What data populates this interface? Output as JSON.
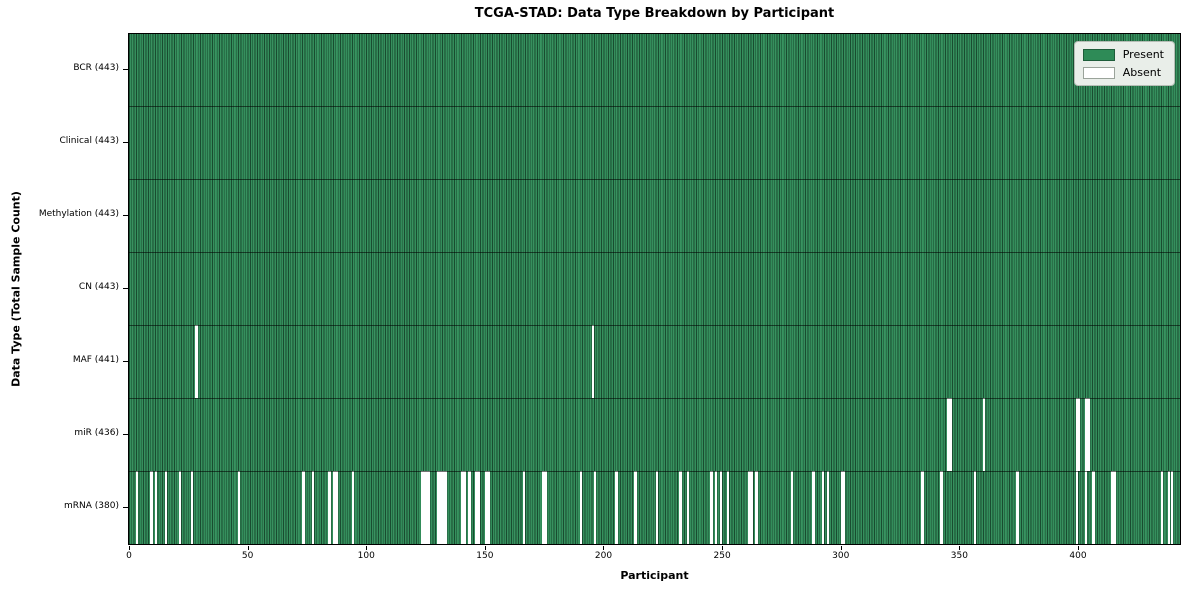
{
  "chart_data": {
    "type": "heatmap",
    "title": "TCGA-STAD: Data Type Breakdown by Participant",
    "xlabel": "Participant",
    "ylabel": "Data Type (Total Sample Count)",
    "xlim": [
      0,
      443
    ],
    "n_participants": 443,
    "x_ticks": [
      0,
      50,
      100,
      150,
      200,
      250,
      300,
      350,
      400
    ],
    "grid": "row-separators",
    "legend_position": "upper-right",
    "legend": [
      {
        "label": "Present",
        "color": "#2e8b57"
      },
      {
        "label": "Absent",
        "color": "#ffffff"
      }
    ],
    "colors": {
      "present": "#2e8b57",
      "bar_edge": "rgba(0,0,0,0.45)",
      "row_separator": "rgba(0,0,0,0.55)",
      "legend_bg": "#e9eee9"
    },
    "rows": [
      {
        "label": "BCR (443)",
        "total": 443,
        "absent": []
      },
      {
        "label": "Clinical (443)",
        "total": 443,
        "absent": []
      },
      {
        "label": "Methylation (443)",
        "total": 443,
        "absent": []
      },
      {
        "label": "CN (443)",
        "total": 443,
        "absent": []
      },
      {
        "label": "MAF (441)",
        "total": 441,
        "absent": [
          28,
          195
        ]
      },
      {
        "label": "miR (436)",
        "total": 436,
        "absent": [
          345,
          346,
          360,
          399,
          400,
          403,
          404
        ]
      },
      {
        "label": "mRNA (380)",
        "total": 380,
        "absent": [
          3,
          9,
          11,
          15,
          21,
          26,
          46,
          73,
          77,
          84,
          86,
          87,
          94,
          123,
          124,
          125,
          126,
          130,
          131,
          132,
          133,
          140,
          141,
          143,
          146,
          147,
          150,
          151,
          166,
          174,
          175,
          190,
          196,
          205,
          213,
          222,
          232,
          235,
          245,
          247,
          249,
          252,
          261,
          262,
          264,
          279,
          288,
          292,
          294,
          300,
          301,
          334,
          342,
          356,
          374,
          399,
          403,
          406,
          414,
          415,
          435,
          438,
          439
        ]
      }
    ]
  }
}
